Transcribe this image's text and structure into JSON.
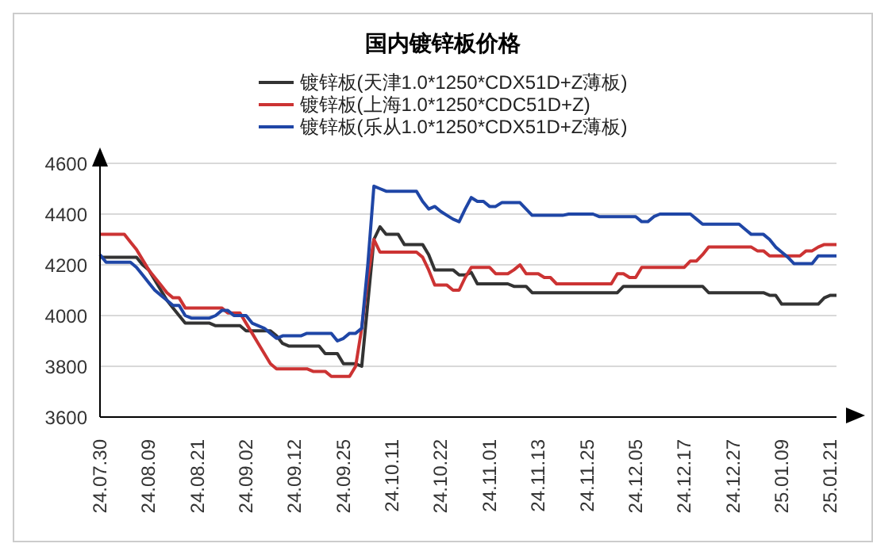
{
  "chart_data": {
    "type": "line",
    "title": "国内镀锌板价格",
    "categories": [
      "24.07.30",
      null,
      null,
      null,
      null,
      null,
      null,
      null,
      "24.08.09",
      null,
      null,
      null,
      null,
      null,
      null,
      null,
      "24.08.21",
      null,
      null,
      null,
      null,
      null,
      null,
      null,
      "24.09.02",
      null,
      null,
      null,
      null,
      null,
      null,
      null,
      "24.09.12",
      null,
      null,
      null,
      null,
      null,
      null,
      null,
      "24.09.25",
      null,
      null,
      null,
      null,
      null,
      null,
      null,
      "24.10.11",
      null,
      null,
      null,
      null,
      null,
      null,
      null,
      "24.10.22",
      null,
      null,
      null,
      null,
      null,
      null,
      null,
      "24.11.01",
      null,
      null,
      null,
      null,
      null,
      null,
      null,
      "24.11.13",
      null,
      null,
      null,
      null,
      null,
      null,
      null,
      "24.11.25",
      null,
      null,
      null,
      null,
      null,
      null,
      null,
      "24.12.05",
      null,
      null,
      null,
      null,
      null,
      null,
      null,
      "24.12.17",
      null,
      null,
      null,
      null,
      null,
      null,
      null,
      "24.12.27",
      null,
      null,
      null,
      null,
      null,
      null,
      null,
      "25.01.09",
      null,
      null,
      null,
      null,
      null,
      null,
      null,
      "25.01.21",
      null
    ],
    "series": [
      {
        "name": "镀锌板(天津1.0*1250*CDX51D+Z薄板)",
        "color": "#333333",
        "values": [
          4230,
          4230,
          4230,
          4230,
          4230,
          4230,
          4230,
          4200,
          4180,
          4140,
          4100,
          4060,
          4030,
          4000,
          3970,
          3970,
          3970,
          3970,
          3970,
          3960,
          3960,
          3960,
          3960,
          3960,
          3940,
          3940,
          3940,
          3940,
          3940,
          3920,
          3890,
          3880,
          3880,
          3880,
          3880,
          3880,
          3880,
          3850,
          3850,
          3850,
          3810,
          3810,
          3810,
          3800,
          4050,
          4300,
          4350,
          4320,
          4320,
          4320,
          4280,
          4280,
          4280,
          4280,
          4240,
          4180,
          4180,
          4180,
          4180,
          4160,
          4160,
          4170,
          4125,
          4125,
          4125,
          4125,
          4125,
          4125,
          4115,
          4115,
          4115,
          4090,
          4090,
          4090,
          4090,
          4090,
          4090,
          4090,
          4090,
          4090,
          4090,
          4090,
          4090,
          4090,
          4090,
          4090,
          4115,
          4115,
          4115,
          4115,
          4115,
          4115,
          4115,
          4115,
          4115,
          4115,
          4115,
          4115,
          4115,
          4115,
          4090,
          4090,
          4090,
          4090,
          4090,
          4090,
          4090,
          4090,
          4090,
          4090,
          4080,
          4080,
          4045,
          4045,
          4045,
          4045,
          4045,
          4045,
          4045,
          4070,
          4080,
          4080
        ]
      },
      {
        "name": "镀锌板(上海1.0*1250*CDC51D+Z)",
        "color": "#cc3333",
        "values": [
          4320,
          4320,
          4320,
          4320,
          4320,
          4290,
          4260,
          4220,
          4180,
          4150,
          4120,
          4090,
          4070,
          4070,
          4030,
          4030,
          4030,
          4030,
          4030,
          4030,
          4030,
          4010,
          4010,
          4010,
          3970,
          3930,
          3890,
          3850,
          3810,
          3790,
          3790,
          3790,
          3790,
          3790,
          3790,
          3780,
          3780,
          3780,
          3760,
          3760,
          3760,
          3760,
          3800,
          3950,
          4150,
          4300,
          4250,
          4250,
          4250,
          4250,
          4250,
          4250,
          4250,
          4230,
          4180,
          4120,
          4120,
          4120,
          4100,
          4100,
          4150,
          4190,
          4190,
          4190,
          4190,
          4165,
          4165,
          4165,
          4180,
          4200,
          4165,
          4165,
          4165,
          4150,
          4150,
          4125,
          4125,
          4125,
          4125,
          4125,
          4125,
          4125,
          4125,
          4125,
          4125,
          4165,
          4165,
          4150,
          4150,
          4190,
          4190,
          4190,
          4190,
          4190,
          4190,
          4190,
          4190,
          4215,
          4215,
          4240,
          4270,
          4270,
          4270,
          4270,
          4270,
          4270,
          4270,
          4270,
          4255,
          4255,
          4235,
          4235,
          4235,
          4235,
          4235,
          4235,
          4255,
          4255,
          4270,
          4280,
          4280,
          4280
        ]
      },
      {
        "name": "镀锌板(乐从1.0*1250*CDX51D+Z薄板)",
        "color": "#1f46a6",
        "values": [
          4240,
          4210,
          4210,
          4210,
          4210,
          4210,
          4190,
          4160,
          4130,
          4100,
          4080,
          4060,
          4040,
          4040,
          4000,
          3990,
          3990,
          3990,
          3990,
          4000,
          4020,
          4020,
          4000,
          4000,
          4000,
          3970,
          3960,
          3950,
          3930,
          3910,
          3920,
          3920,
          3920,
          3920,
          3930,
          3930,
          3930,
          3930,
          3930,
          3900,
          3910,
          3930,
          3930,
          3950,
          4200,
          4510,
          4500,
          4490,
          4490,
          4490,
          4490,
          4490,
          4490,
          4450,
          4420,
          4430,
          4410,
          4395,
          4380,
          4370,
          4420,
          4465,
          4450,
          4450,
          4430,
          4430,
          4445,
          4445,
          4445,
          4445,
          4420,
          4395,
          4395,
          4395,
          4395,
          4395,
          4395,
          4400,
          4400,
          4400,
          4400,
          4400,
          4390,
          4390,
          4390,
          4390,
          4390,
          4390,
          4390,
          4370,
          4370,
          4390,
          4400,
          4400,
          4400,
          4400,
          4400,
          4400,
          4380,
          4360,
          4360,
          4360,
          4360,
          4360,
          4360,
          4360,
          4340,
          4320,
          4320,
          4320,
          4300,
          4270,
          4250,
          4230,
          4205,
          4205,
          4205,
          4205,
          4235,
          4235,
          4235,
          4235
        ]
      }
    ],
    "ylim": [
      3600,
      4600
    ],
    "yticks": [
      3600,
      3800,
      4000,
      4200,
      4400,
      4600
    ],
    "grid": "y",
    "legend": "top",
    "marker": "none",
    "line_style": "solid"
  }
}
